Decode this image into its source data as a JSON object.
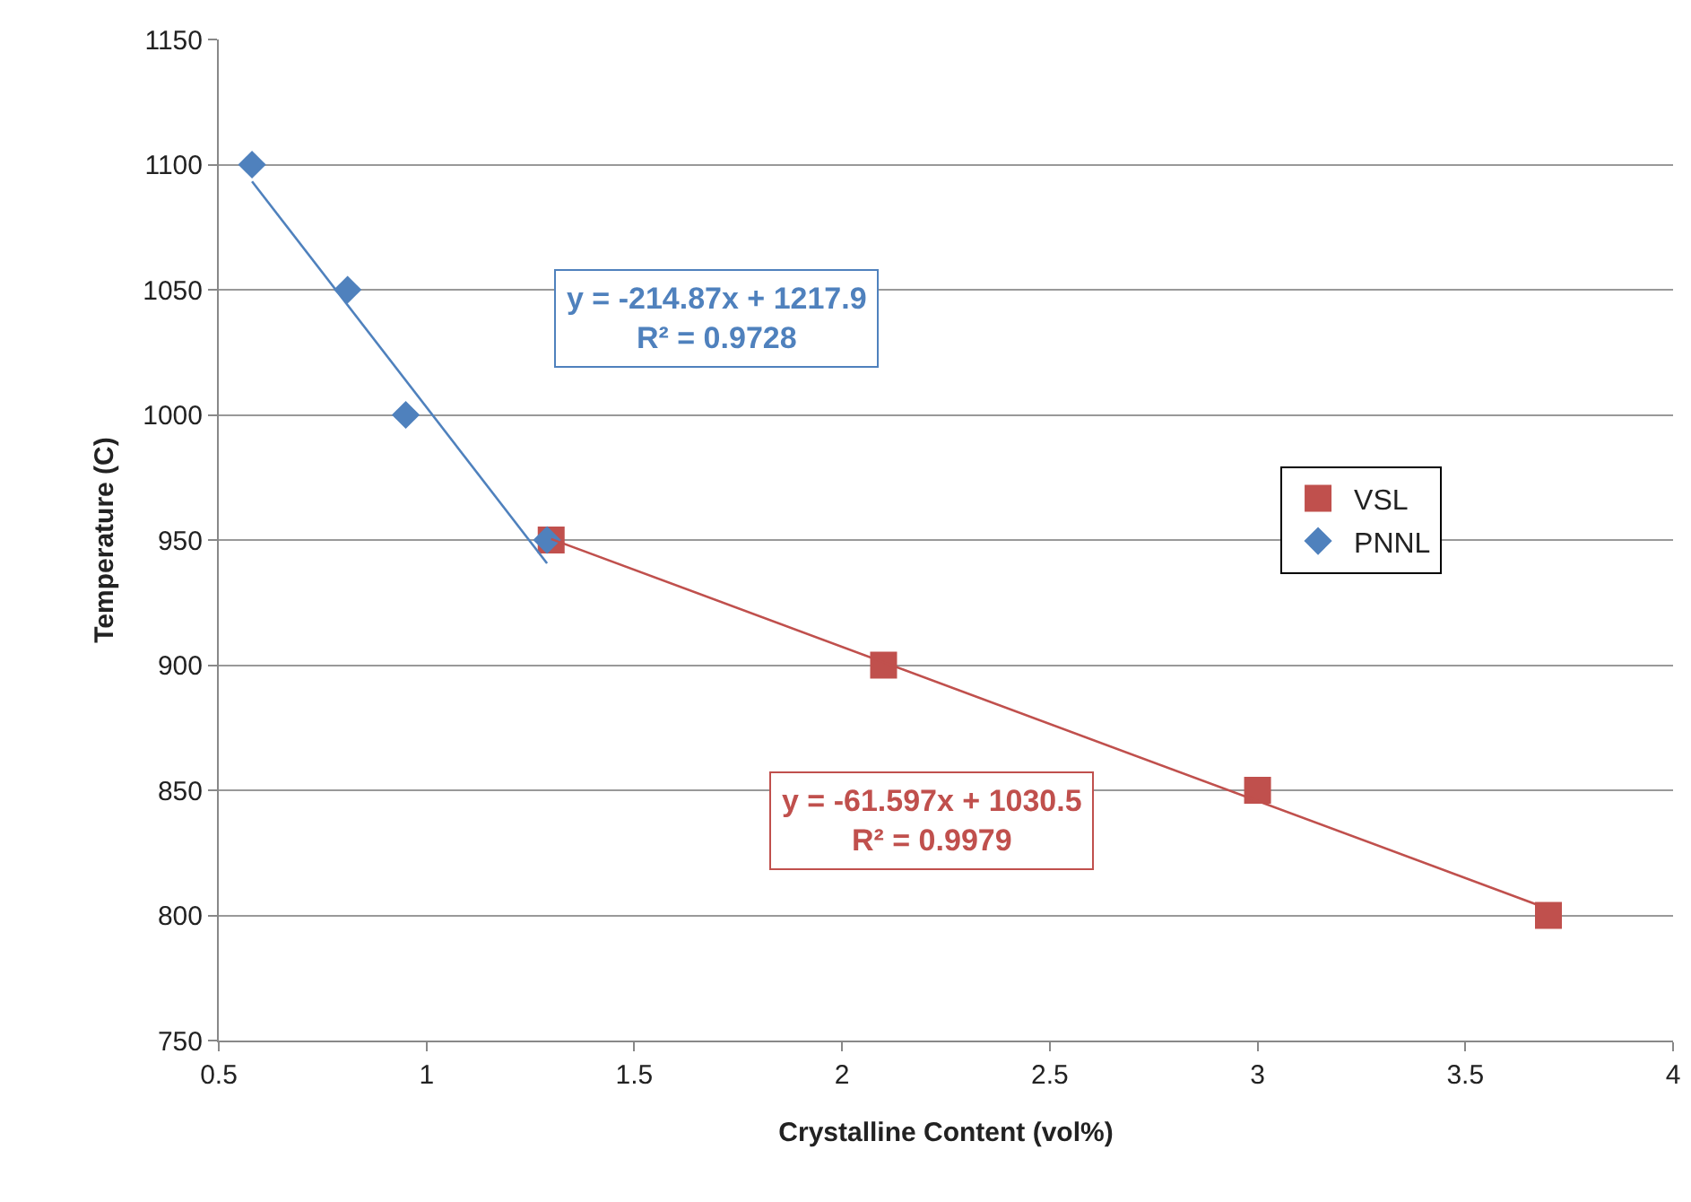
{
  "chart_data": {
    "type": "scatter",
    "xlabel": "Crystalline Content (vol%)",
    "ylabel": "Temperature (C)",
    "xlim": [
      0.5,
      4
    ],
    "xticks": [
      0.5,
      1,
      1.5,
      2,
      2.5,
      3,
      3.5,
      4
    ],
    "ylim": [
      750,
      1150
    ],
    "yticks": [
      750,
      800,
      850,
      900,
      950,
      1000,
      1050,
      1100,
      1150
    ],
    "grid": "y",
    "legend": "right",
    "series": [
      {
        "name": "VSL",
        "color": "#c0504d",
        "marker": "square",
        "x": [
          1.3,
          2.1,
          3.0,
          3.7
        ],
        "values": [
          950,
          900,
          850,
          800
        ]
      },
      {
        "name": "PNNL",
        "color": "#4f81bd",
        "marker": "diamond",
        "x": [
          0.58,
          0.81,
          0.95,
          1.29
        ],
        "values": [
          1100,
          1050,
          1000,
          950
        ]
      },
      {
        "type": "line",
        "color": "#4f81bd",
        "marker": "none",
        "x": [
          0.58,
          1.29
        ],
        "values": [
          1093.3,
          940.7
        ]
      },
      {
        "type": "line",
        "color": "#c0504d",
        "marker": "none",
        "x": [
          1.3,
          3.7
        ],
        "values": [
          950.4,
          802.6
        ]
      }
    ],
    "annotations": [
      "y = -214.87x + 1217.9\nR² = 0.9728",
      "y = -61.597x + 1030.5\nR² = 0.9979"
    ]
  }
}
